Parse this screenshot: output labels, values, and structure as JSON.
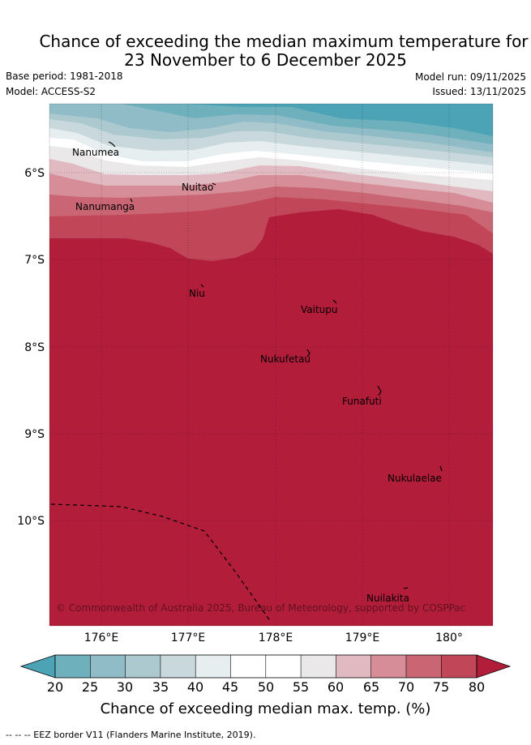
{
  "title": {
    "line1": "Chance of exceeding the median maximum temperature for",
    "line2": "23 November to 6 December 2025"
  },
  "meta": {
    "base_period": "Base period: 1981-2018",
    "model": "Model: ACCESS-S2",
    "model_run": "Model run: 09/11/2025",
    "issued": "Issued: 13/11/2025"
  },
  "map": {
    "lon_ticks": [
      "176°E",
      "177°E",
      "178°E",
      "179°E",
      "180°"
    ],
    "lat_ticks": [
      "6°S",
      "7°S",
      "8°S",
      "9°S",
      "10°S"
    ],
    "places": [
      "Nanumea",
      "Nuitao",
      "Nanumanga",
      "Niu",
      "Vaitupu",
      "Nukufetau",
      "Funafuti",
      "Nukulaelae",
      "Nuilakita"
    ],
    "copyright": "© Commonwealth of Australia 2025, Bureau of Meteorology, supported by COSPPac"
  },
  "colorbar": {
    "ticks": [
      "20",
      "25",
      "30",
      "35",
      "40",
      "45",
      "50",
      "55",
      "60",
      "65",
      "70",
      "75",
      "80"
    ],
    "colors": {
      "below_20": "#4ba3b5",
      "c20_25": "#6fb0bd",
      "c25_30": "#8fbcc7",
      "c30_35": "#abc9ce",
      "c35_40": "#c8d8dd",
      "c40_45": "#e7eef0",
      "c45_50": "#ffffff",
      "c50_55": "#ffffff",
      "c55_60": "#ebe8ea",
      "c60_65": "#e1b9c1",
      "c65_70": "#d68d97",
      "c70_75": "#ca6674",
      "c75_80": "#c14658",
      "above_80": "#b21e3a"
    },
    "label": "Chance of exceeding median max. temp. (%)"
  },
  "legend": {
    "eez": "--  --  -- EEZ border V11 (Flanders Marine Institute, 2019)."
  }
}
